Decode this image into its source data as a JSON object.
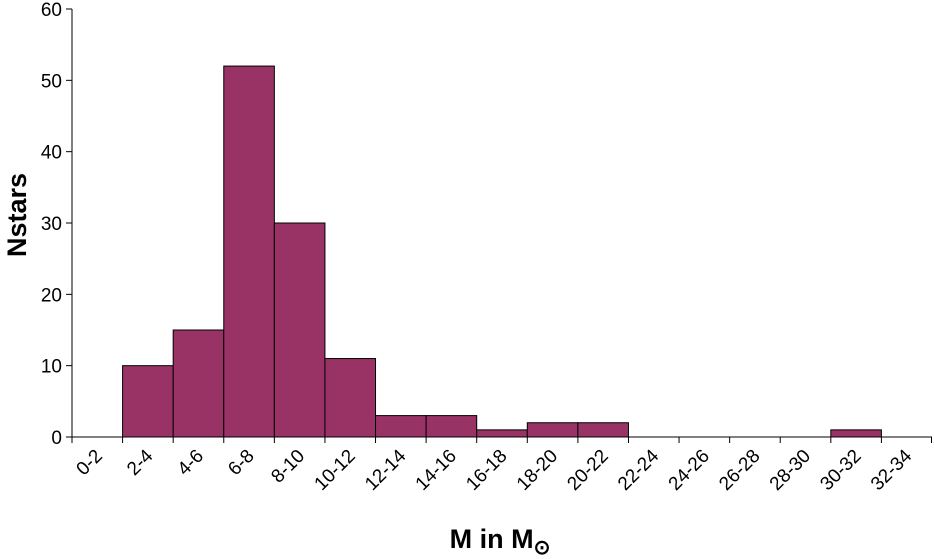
{
  "chart_data": {
    "type": "bar",
    "xlabel": "M in M",
    "xlabel_sub": "⊙",
    "ylabel": "Nstars",
    "categories": [
      "0-2",
      "2-4",
      "4-6",
      "6-8",
      "8-10",
      "10-12",
      "12-14",
      "14-16",
      "16-18",
      "18-20",
      "20-22",
      "22-24",
      "24-26",
      "26-28",
      "28-30",
      "30-32",
      "32-34"
    ],
    "values": [
      0,
      10,
      15,
      52,
      30,
      11,
      3,
      3,
      1,
      2,
      2,
      0,
      0,
      0,
      0,
      1,
      0
    ],
    "color": "#993366",
    "ylim": [
      0,
      60
    ],
    "yticks": [
      0,
      10,
      20,
      30,
      40,
      50,
      60
    ],
    "grid": false
  }
}
